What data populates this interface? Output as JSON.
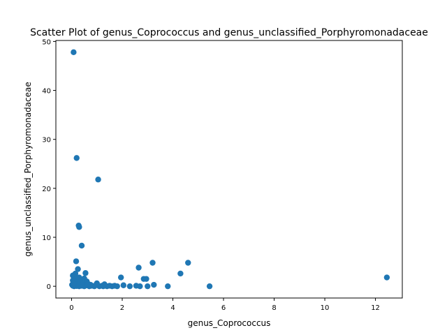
{
  "chart_data": {
    "type": "scatter",
    "title": "Scatter Plot of genus_Coprococcus and genus_unclassified_Porphyromonadaceae",
    "xlabel": "genus_Coprococcus",
    "ylabel": "genus_unclassified_Porphyromonadaceae",
    "xlim": [
      -0.62,
      13.06
    ],
    "ylim": [
      -2.4,
      50.2
    ],
    "xticks": [
      0,
      2,
      4,
      6,
      8,
      10,
      12
    ],
    "yticks": [
      0,
      10,
      20,
      30,
      40,
      50
    ],
    "grid": false,
    "marker_color": "#1f77b4",
    "points": [
      {
        "x": 0.08,
        "y": 47.8
      },
      {
        "x": 0.2,
        "y": 26.2
      },
      {
        "x": 1.05,
        "y": 21.8
      },
      {
        "x": 0.28,
        "y": 12.4
      },
      {
        "x": 0.3,
        "y": 12.1
      },
      {
        "x": 0.4,
        "y": 8.3
      },
      {
        "x": 0.18,
        "y": 5.1
      },
      {
        "x": 0.25,
        "y": 3.5
      },
      {
        "x": 0.15,
        "y": 2.6
      },
      {
        "x": 0.05,
        "y": 2.2
      },
      {
        "x": 0.1,
        "y": 1.9
      },
      {
        "x": 0.3,
        "y": 1.8
      },
      {
        "x": 0.2,
        "y": 1.5
      },
      {
        "x": 0.05,
        "y": 1.2
      },
      {
        "x": 0.12,
        "y": 1.0
      },
      {
        "x": 0.22,
        "y": 0.8
      },
      {
        "x": 0.35,
        "y": 0.6
      },
      {
        "x": 0.45,
        "y": 0.5
      },
      {
        "x": 0.55,
        "y": 2.7
      },
      {
        "x": 0.5,
        "y": 1.6
      },
      {
        "x": 0.6,
        "y": 1.0
      },
      {
        "x": 0.02,
        "y": 0.3
      },
      {
        "x": 0.05,
        "y": 0.1
      },
      {
        "x": 0.1,
        "y": 0.0
      },
      {
        "x": 0.15,
        "y": 0.2
      },
      {
        "x": 0.2,
        "y": 0.05
      },
      {
        "x": 0.25,
        "y": 0.4
      },
      {
        "x": 0.3,
        "y": 0.0
      },
      {
        "x": 0.4,
        "y": 0.1
      },
      {
        "x": 0.5,
        "y": 0.0
      },
      {
        "x": 0.6,
        "y": 0.2
      },
      {
        "x": 0.7,
        "y": 0.0
      },
      {
        "x": 0.8,
        "y": 0.1
      },
      {
        "x": 0.9,
        "y": 0.0
      },
      {
        "x": 1.0,
        "y": 0.6
      },
      {
        "x": 1.1,
        "y": 0.0
      },
      {
        "x": 1.2,
        "y": 0.1
      },
      {
        "x": 1.3,
        "y": 0.4
      },
      {
        "x": 1.4,
        "y": 0.0
      },
      {
        "x": 1.5,
        "y": 0.1
      },
      {
        "x": 1.6,
        "y": 0.0
      },
      {
        "x": 1.7,
        "y": 0.1
      },
      {
        "x": 1.8,
        "y": 0.0
      },
      {
        "x": 1.95,
        "y": 1.8
      },
      {
        "x": 2.05,
        "y": 0.2
      },
      {
        "x": 2.3,
        "y": 0.0
      },
      {
        "x": 2.55,
        "y": 0.1
      },
      {
        "x": 2.65,
        "y": 3.8
      },
      {
        "x": 2.7,
        "y": 0.0
      },
      {
        "x": 2.85,
        "y": 1.5
      },
      {
        "x": 2.95,
        "y": 1.5
      },
      {
        "x": 3.0,
        "y": 0.0
      },
      {
        "x": 3.2,
        "y": 4.8
      },
      {
        "x": 3.25,
        "y": 0.3
      },
      {
        "x": 3.8,
        "y": 0.0
      },
      {
        "x": 4.3,
        "y": 2.6
      },
      {
        "x": 4.6,
        "y": 4.8
      },
      {
        "x": 5.45,
        "y": 0.0
      },
      {
        "x": 12.45,
        "y": 1.8
      },
      {
        "x": 0.75,
        "y": 0.3
      },
      {
        "x": 0.95,
        "y": 0.2
      },
      {
        "x": 1.25,
        "y": 0.0
      },
      {
        "x": 0.65,
        "y": 0.5
      },
      {
        "x": 0.08,
        "y": 0.6
      },
      {
        "x": 0.35,
        "y": 0.9
      },
      {
        "x": 0.42,
        "y": 0.3
      }
    ]
  }
}
